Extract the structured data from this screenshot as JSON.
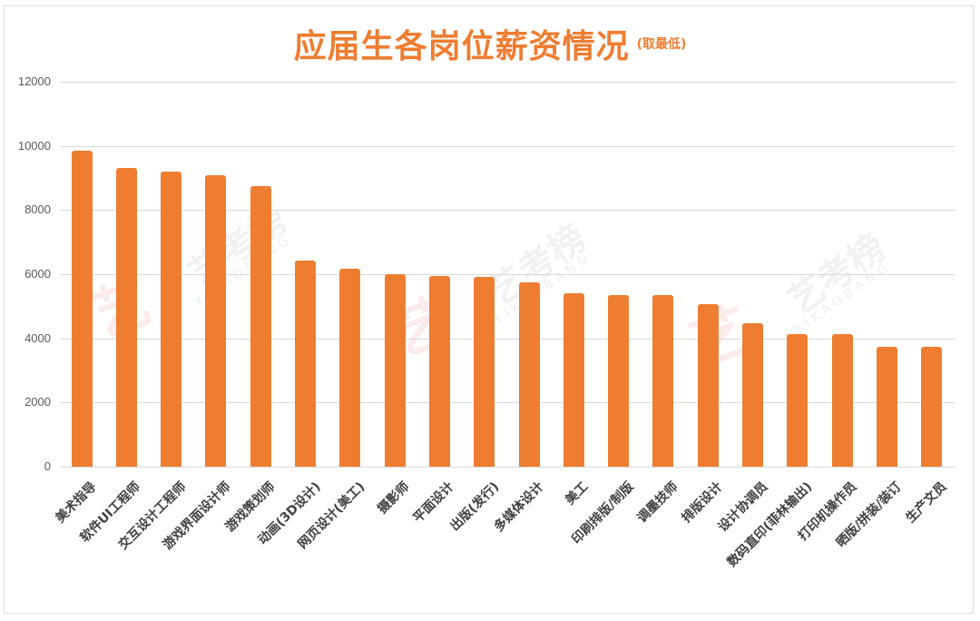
{
  "title": {
    "main": "应届生各岗位薪资情况",
    "sub": "(取最低)"
  },
  "watermark": {
    "text": "艺考榜",
    "sub": "YIKAOBANG",
    "logo": "艺"
  },
  "colors": {
    "bar": "#ef7d31",
    "title": "#ef7d31",
    "grid": "#d9d9d9",
    "axis_text": "#595959"
  },
  "chart_data": {
    "type": "bar",
    "title": "应届生各岗位薪资情况(取最低)",
    "xlabel": "",
    "ylabel": "",
    "ylim": [
      0,
      12000
    ],
    "yticks": [
      0,
      2000,
      4000,
      6000,
      8000,
      10000,
      12000
    ],
    "grid": true,
    "legend": "none",
    "categories": [
      "美术指导",
      "软件UI工程师",
      "交互设计工程师",
      "游戏界面设计师",
      "游戏策划师",
      "动画(3D设计)",
      "网页设计(美工)",
      "摄影师",
      "平面设计",
      "出版(发行)",
      "多媒体设计",
      "美工",
      "印刷排版/制版",
      "调墨技师",
      "排版设计",
      "设计协调员",
      "数码直印(菲林输出)",
      "打印机操作员",
      "晒版/拼装/装订",
      "生产文员"
    ],
    "values": [
      9850,
      9300,
      9200,
      9080,
      8750,
      6420,
      6170,
      6000,
      5950,
      5910,
      5750,
      5400,
      5350,
      5350,
      5070,
      4480,
      4140,
      4140,
      3740,
      3740
    ]
  }
}
